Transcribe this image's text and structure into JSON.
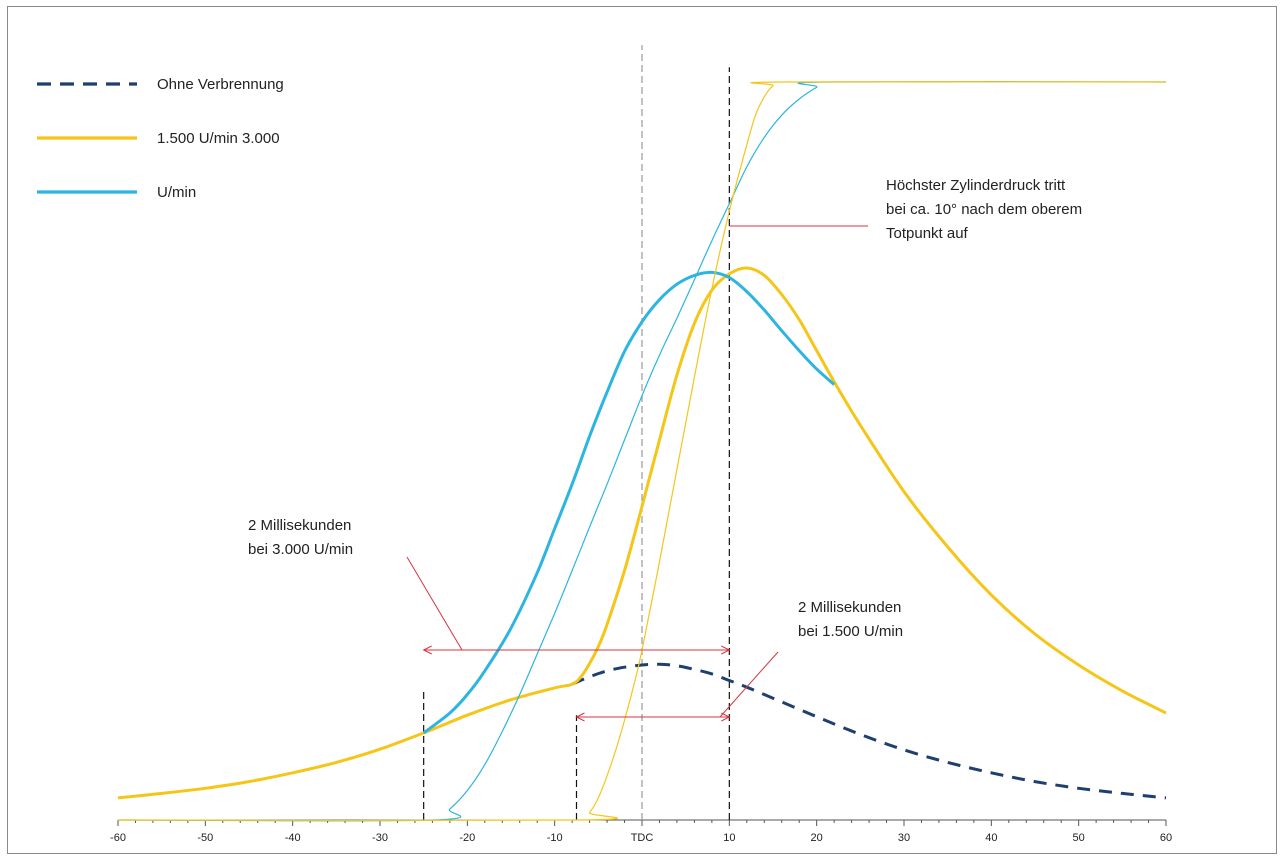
{
  "chart_data": {
    "type": "line",
    "xlabel": "",
    "ylabel": "",
    "xlim": [
      -60,
      60
    ],
    "ylim": [
      0,
      100
    ],
    "grid": false,
    "legend_placement": "top-left",
    "x_ticks": [
      {
        "value": -60,
        "label": "-60"
      },
      {
        "value": -50,
        "label": "-50"
      },
      {
        "value": -40,
        "label": "-40"
      },
      {
        "value": -30,
        "label": "-30"
      },
      {
        "value": -20,
        "label": "-20"
      },
      {
        "value": -10,
        "label": "-10"
      },
      {
        "value": 0,
        "label": "TDC"
      },
      {
        "value": 10,
        "label": "10"
      },
      {
        "value": 20,
        "label": "20"
      },
      {
        "value": 30,
        "label": "30"
      },
      {
        "value": 40,
        "label": "40"
      },
      {
        "value": 50,
        "label": "50"
      },
      {
        "value": 60,
        "label": "60"
      }
    ],
    "legend": [
      {
        "label": "Ohne Verbrennung",
        "color": "#1f3f6e",
        "style": "dashed"
      },
      {
        "label": "1.500 U/min 3.000",
        "color": "#f5c518",
        "style": "solid"
      },
      {
        "label": "U/min",
        "color": "#2cb5e0",
        "style": "solid"
      }
    ],
    "series": [
      {
        "key": "motored",
        "color": "#1f3f6e",
        "style": "dashed",
        "width": 3,
        "x": [
          -8,
          -6,
          -4,
          -2,
          0,
          2,
          4,
          6,
          8,
          10,
          12,
          15,
          20,
          25,
          30,
          35,
          40,
          45,
          50,
          55,
          60
        ],
        "y": [
          18.4,
          19.4,
          20.2,
          20.7,
          21,
          21.1,
          20.9,
          20.4,
          19.8,
          18.9,
          18,
          16.5,
          14,
          11.6,
          9.5,
          7.8,
          6.4,
          5.2,
          4.3,
          3.6,
          3
        ]
      },
      {
        "key": "pressure-1500",
        "color": "#f5c518",
        "style": "solid",
        "width": 3,
        "x": [
          -60,
          -55,
          -50,
          -45,
          -40,
          -35,
          -30,
          -25,
          -20,
          -15,
          -10,
          -8,
          -7,
          -6,
          -5,
          -4,
          -2,
          0,
          2,
          4,
          6,
          8,
          10,
          12,
          14,
          16,
          18,
          20,
          22,
          25,
          30,
          35,
          40,
          45,
          50,
          55,
          60
        ],
        "y": [
          3,
          3.6,
          4.3,
          5.2,
          6.4,
          7.8,
          9.6,
          11.8,
          14.2,
          16.3,
          17.9,
          18.4,
          19.4,
          21.2,
          23.5,
          26.5,
          33.8,
          42.5,
          51.5,
          60.3,
          67.3,
          71.8,
          74,
          74.8,
          73.8,
          71.2,
          67.8,
          63.6,
          59.4,
          53.5,
          44.5,
          37,
          30.5,
          25.2,
          21,
          17.5,
          14.5
        ]
      },
      {
        "key": "pressure-3000",
        "color": "#2cb5e0",
        "style": "solid",
        "width": 3,
        "x": [
          -25,
          -22,
          -20,
          -18,
          -15,
          -12,
          -10,
          -8,
          -6,
          -4,
          -2,
          0,
          2,
          4,
          6,
          8,
          10,
          12,
          14,
          16,
          18,
          20,
          22
        ],
        "y": [
          11.8,
          14.5,
          17,
          20.2,
          26,
          33.5,
          39.5,
          45.5,
          52,
          58,
          63.5,
          67.5,
          70.5,
          72.6,
          73.8,
          74.2,
          73.5,
          71.6,
          69.1,
          66.3,
          63.6,
          61.1,
          59
        ]
      },
      {
        "key": "burn-3000",
        "color": "#2cb5e0",
        "style": "solid",
        "width": 1.2,
        "x": [
          -60,
          -24,
          -22,
          -20,
          -18,
          -16,
          -14,
          -12,
          -10,
          -8,
          -6,
          -4,
          -2,
          0,
          2,
          4,
          6,
          8,
          10,
          12,
          14,
          16,
          18,
          20,
          21,
          60
        ],
        "y": [
          0,
          0,
          1.5,
          4,
          7.5,
          12,
          17,
          22.5,
          28,
          33.8,
          39.7,
          45.5,
          51.5,
          57.5,
          63,
          68,
          73.2,
          78.5,
          83.5,
          88.5,
          92.5,
          95.5,
          97.7,
          99.3,
          100,
          100
        ]
      },
      {
        "key": "burn-1500",
        "color": "#f5c518",
        "style": "solid",
        "width": 1.2,
        "x": [
          -60,
          -7,
          -6,
          -5,
          -4,
          -3,
          -2,
          -1,
          0,
          2,
          4,
          6,
          8,
          10,
          12,
          13,
          14,
          15,
          16,
          60
        ],
        "y": [
          0,
          0,
          1,
          3,
          6,
          9.5,
          13.5,
          18,
          23,
          35,
          47.5,
          60,
          72,
          82.5,
          91.5,
          95.5,
          98,
          99.5,
          100,
          100
        ]
      }
    ],
    "annotations": [
      {
        "key": "peak",
        "lines": [
          "Höchster Zylinderdruck tritt",
          "bei ca. 10° nach dem oberem",
          "Totpunkt auf"
        ]
      },
      {
        "key": "ms3000",
        "lines": [
          "2 Millisekunden",
          "bei 3.000 U/min"
        ],
        "from": -25,
        "to": 10
      },
      {
        "key": "ms1500",
        "lines": [
          "2 Millisekunden",
          "bei 1.500 U/min"
        ],
        "from": -7.5,
        "to": 10
      }
    ],
    "reference_lines": [
      {
        "x": 0,
        "color": "#9a9a9a",
        "from": 0,
        "to": 105
      },
      {
        "x": 10,
        "color": "#111111",
        "from": 0,
        "to": 102
      },
      {
        "x": -25,
        "color": "#111111",
        "from": 0,
        "to": 17.5
      },
      {
        "x": -7.5,
        "color": "#111111",
        "from": 0,
        "to": 14.2
      }
    ]
  }
}
